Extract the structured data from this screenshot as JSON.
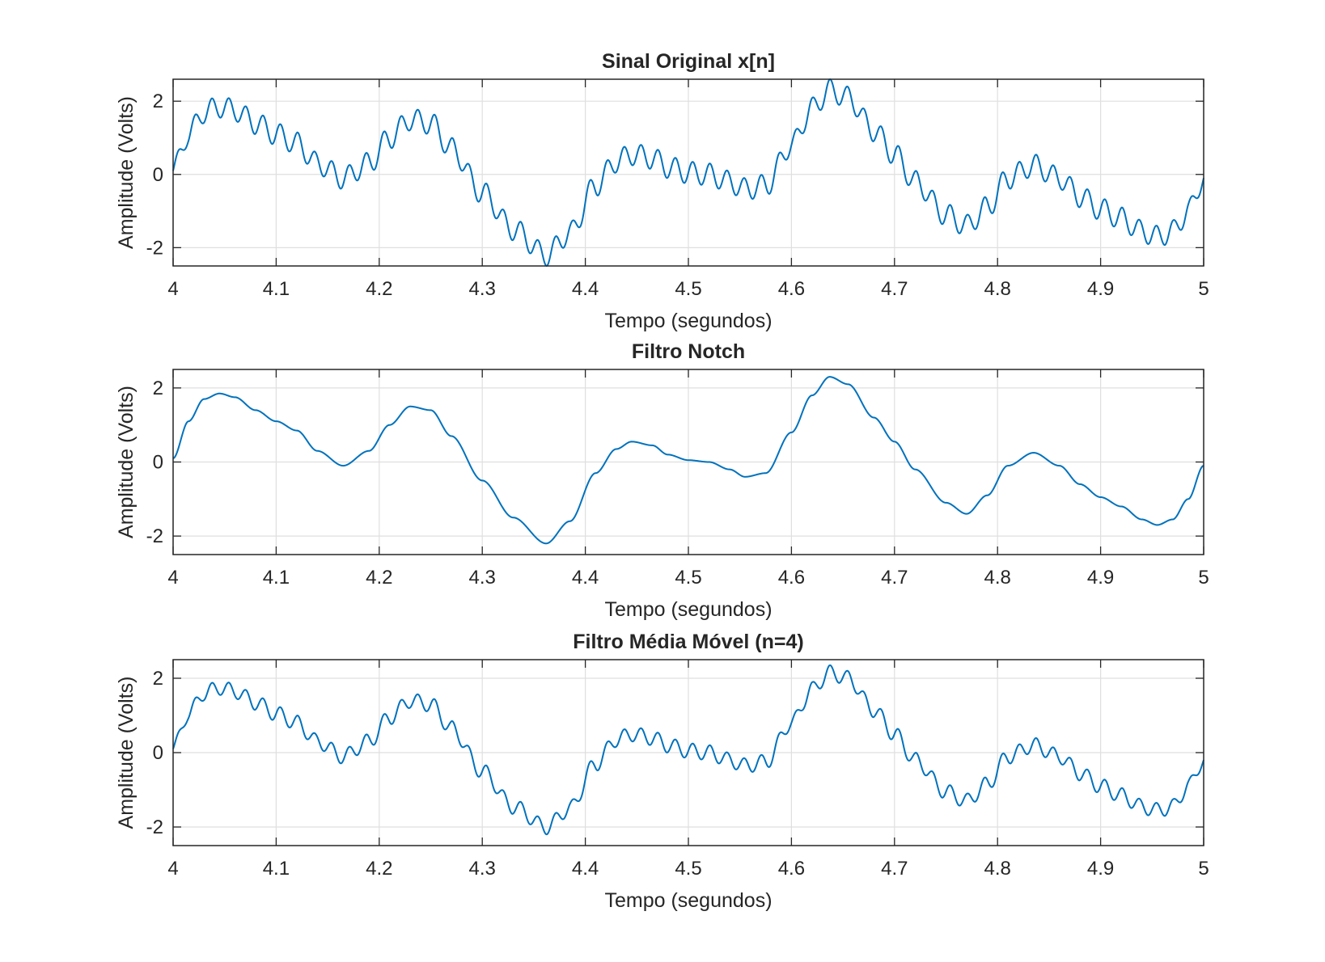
{
  "figure": {
    "background": "#ffffff",
    "line_color": "#0072bd",
    "grid_color": "#dfdfdf",
    "axis_color": "#262626"
  },
  "chart_data": [
    {
      "type": "line",
      "title": "Sinal Original x[n]",
      "xlabel": "Tempo (segundos)",
      "ylabel": "Amplitude (Volts)",
      "xlim": [
        4,
        5
      ],
      "ylim": [
        -2.5,
        2.6
      ],
      "xticks": [
        4,
        4.1,
        4.2,
        4.3,
        4.4,
        4.5,
        4.6,
        4.7,
        4.8,
        4.9,
        5
      ],
      "xtick_labels": [
        "4",
        "4.1",
        "4.2",
        "4.3",
        "4.4",
        "4.5",
        "4.6",
        "4.7",
        "4.8",
        "4.9",
        "5"
      ],
      "yticks": [
        -2,
        0,
        2
      ],
      "ytick_labels": [
        "-2",
        "0",
        "2"
      ],
      "grid": true,
      "ripple": {
        "frequency_hz": 60,
        "amplitude": 0.3
      },
      "series": [
        {
          "x": [
            4.0,
            4.015,
            4.03,
            4.045,
            4.06,
            4.08,
            4.1,
            4.12,
            4.14,
            4.165,
            4.19,
            4.21,
            4.23,
            4.25,
            4.27,
            4.3,
            4.33,
            4.362,
            4.385,
            4.41,
            4.43,
            4.445,
            4.465,
            4.48,
            4.5,
            4.52,
            4.54,
            4.555,
            4.575,
            4.6,
            4.62,
            4.637,
            4.655,
            4.68,
            4.7,
            4.72,
            4.75,
            4.77,
            4.79,
            4.81,
            4.835,
            4.86,
            4.88,
            4.9,
            4.92,
            4.94,
            4.955,
            4.97,
            4.985,
            5.0
          ],
          "y": [
            0.1,
            1.1,
            1.7,
            1.85,
            1.75,
            1.4,
            1.1,
            0.85,
            0.3,
            -0.1,
            0.3,
            1.0,
            1.5,
            1.4,
            0.7,
            -0.5,
            -1.5,
            -2.2,
            -1.6,
            -0.3,
            0.35,
            0.55,
            0.45,
            0.2,
            0.05,
            0.0,
            -0.2,
            -0.4,
            -0.3,
            0.8,
            1.8,
            2.3,
            2.1,
            1.2,
            0.55,
            -0.2,
            -1.1,
            -1.4,
            -0.9,
            -0.1,
            0.25,
            -0.1,
            -0.6,
            -0.95,
            -1.2,
            -1.55,
            -1.7,
            -1.55,
            -1.0,
            -0.1
          ]
        }
      ]
    },
    {
      "type": "line",
      "title": "Filtro Notch",
      "xlabel": "Tempo (segundos)",
      "ylabel": "Amplitude (Volts)",
      "xlim": [
        4,
        5
      ],
      "ylim": [
        -2.5,
        2.5
      ],
      "xticks": [
        4,
        4.1,
        4.2,
        4.3,
        4.4,
        4.5,
        4.6,
        4.7,
        4.8,
        4.9,
        5
      ],
      "xtick_labels": [
        "4",
        "4.1",
        "4.2",
        "4.3",
        "4.4",
        "4.5",
        "4.6",
        "4.7",
        "4.8",
        "4.9",
        "5"
      ],
      "yticks": [
        -2,
        0,
        2
      ],
      "ytick_labels": [
        "-2",
        "0",
        "2"
      ],
      "grid": true,
      "series": [
        {
          "x": [
            4.0,
            4.015,
            4.03,
            4.045,
            4.06,
            4.08,
            4.1,
            4.12,
            4.14,
            4.165,
            4.19,
            4.21,
            4.23,
            4.25,
            4.27,
            4.3,
            4.33,
            4.362,
            4.385,
            4.41,
            4.43,
            4.445,
            4.465,
            4.48,
            4.5,
            4.52,
            4.54,
            4.555,
            4.575,
            4.6,
            4.62,
            4.637,
            4.655,
            4.68,
            4.7,
            4.72,
            4.75,
            4.77,
            4.79,
            4.81,
            4.835,
            4.86,
            4.88,
            4.9,
            4.92,
            4.94,
            4.955,
            4.97,
            4.985,
            5.0
          ],
          "y": [
            0.1,
            1.1,
            1.7,
            1.85,
            1.75,
            1.4,
            1.1,
            0.85,
            0.3,
            -0.1,
            0.3,
            1.0,
            1.5,
            1.4,
            0.7,
            -0.5,
            -1.5,
            -2.2,
            -1.6,
            -0.3,
            0.35,
            0.55,
            0.45,
            0.2,
            0.05,
            0.0,
            -0.2,
            -0.4,
            -0.3,
            0.8,
            1.8,
            2.3,
            2.1,
            1.2,
            0.55,
            -0.2,
            -1.1,
            -1.4,
            -0.9,
            -0.1,
            0.25,
            -0.1,
            -0.6,
            -0.95,
            -1.2,
            -1.55,
            -1.7,
            -1.55,
            -1.0,
            -0.1
          ]
        }
      ]
    },
    {
      "type": "line",
      "title": "Filtro Média Móvel (n=4)",
      "xlabel": "Tempo (segundos)",
      "ylabel": "Amplitude (Volts)",
      "xlim": [
        4,
        5
      ],
      "ylim": [
        -2.5,
        2.5
      ],
      "xticks": [
        4,
        4.1,
        4.2,
        4.3,
        4.4,
        4.5,
        4.6,
        4.7,
        4.8,
        4.9,
        5
      ],
      "xtick_labels": [
        "4",
        "4.1",
        "4.2",
        "4.3",
        "4.4",
        "4.5",
        "4.6",
        "4.7",
        "4.8",
        "4.9",
        "5"
      ],
      "yticks": [
        -2,
        0,
        2
      ],
      "ytick_labels": [
        "-2",
        "0",
        "2"
      ],
      "grid": true,
      "ripple": {
        "frequency_hz": 60,
        "amplitude": 0.2
      },
      "series": [
        {
          "x": [
            4.0,
            4.015,
            4.03,
            4.045,
            4.06,
            4.08,
            4.1,
            4.12,
            4.14,
            4.165,
            4.19,
            4.21,
            4.23,
            4.25,
            4.27,
            4.3,
            4.33,
            4.362,
            4.385,
            4.41,
            4.43,
            4.445,
            4.465,
            4.48,
            4.5,
            4.52,
            4.54,
            4.555,
            4.575,
            4.6,
            4.62,
            4.637,
            4.655,
            4.68,
            4.7,
            4.72,
            4.75,
            4.77,
            4.79,
            4.81,
            4.835,
            4.86,
            4.88,
            4.9,
            4.92,
            4.94,
            4.955,
            4.97,
            4.985,
            5.0
          ],
          "y": [
            0.1,
            1.05,
            1.6,
            1.75,
            1.65,
            1.35,
            1.05,
            0.8,
            0.3,
            -0.1,
            0.3,
            0.95,
            1.4,
            1.3,
            0.65,
            -0.5,
            -1.45,
            -2.0,
            -1.5,
            -0.3,
            0.35,
            0.5,
            0.4,
            0.2,
            0.05,
            0.0,
            -0.2,
            -0.35,
            -0.25,
            0.8,
            1.7,
            2.15,
            2.0,
            1.15,
            0.5,
            -0.2,
            -1.05,
            -1.3,
            -0.85,
            -0.1,
            0.2,
            -0.1,
            -0.55,
            -0.9,
            -1.15,
            -1.45,
            -1.55,
            -1.45,
            -0.9,
            -0.2
          ]
        }
      ]
    }
  ]
}
